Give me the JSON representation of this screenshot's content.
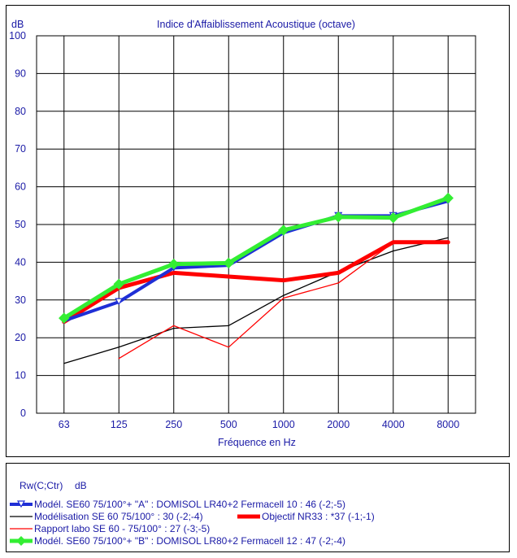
{
  "chart_data": {
    "type": "line",
    "title": "Indice d'Affaiblissement Acoustique (octave)",
    "xlabel": "Fréquence en Hz",
    "ylabel": "dB",
    "categories": [
      "63",
      "125",
      "250",
      "500",
      "1000",
      "2000",
      "4000",
      "8000"
    ],
    "yticks": [
      "0",
      "10",
      "20",
      "30",
      "40",
      "50",
      "60",
      "70",
      "80",
      "90",
      "100"
    ],
    "ylim": [
      0,
      100
    ],
    "grid": true,
    "series": [
      {
        "name": "Modél. SE60 75/100°+ \"A\" : DOMISOL LR40+2 Fermacell 10 : 46 (-2;-5)",
        "color": "#1f2fd6",
        "values": [
          24.5,
          29.5,
          38.5,
          39.2,
          47.8,
          52.3,
          52.3,
          56.2
        ],
        "marker": "triangle-down"
      },
      {
        "name": "Modélisation SE 60 75/100° : 30 (-2;-4)",
        "color": "#000000",
        "values": [
          13.2,
          17.5,
          22.5,
          23.2,
          31.2,
          37.5,
          43.0,
          46.5
        ]
      },
      {
        "name": "Objectif NR33 : *37 (-1;-1)",
        "color": "#ff0000",
        "values": [
          24.2,
          33.2,
          37.2,
          36.2,
          35.2,
          37.2,
          45.3,
          45.3
        ]
      },
      {
        "name": "Rapport labo SE 60 - 75/100° : 27 (-3;-5)",
        "color": "#ff0000",
        "values": [
          null,
          14.5,
          23.2,
          17.5,
          30.5,
          34.5,
          45.2,
          45.2
        ]
      },
      {
        "name": "Modél. SE60 75/100°+ \"B\" : DOMISOL LR80+2 Fermacell 12 : 47 (-2;-4)",
        "color": "#33ee33",
        "values": [
          25.2,
          34.2,
          39.5,
          39.8,
          48.5,
          52.0,
          51.8,
          57.0
        ],
        "marker": "diamond"
      }
    ]
  },
  "legend": {
    "header": "Rw(C;Ctr)",
    "header_unit": "dB",
    "items": [
      "Modél. SE60 75/100°+ \"A\" : DOMISOL LR40+2 Fermacell 10 : 46 (-2;-5)",
      "Modélisation SE 60 75/100° : 30 (-2;-4)",
      "Objectif NR33 : *37 (-1;-1)",
      "Rapport labo SE 60 - 75/100° : 27 (-3;-5)",
      "Modél. SE60 75/100°+ \"B\" : DOMISOL LR80+2 Fermacell 12 : 47 (-2;-4)"
    ]
  }
}
